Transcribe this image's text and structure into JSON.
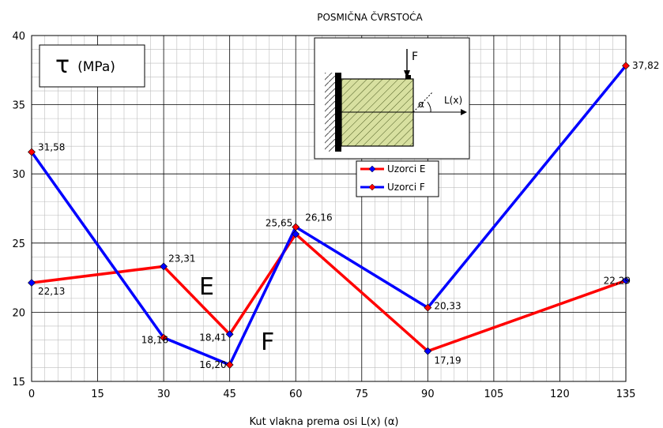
{
  "chart_data": {
    "type": "line",
    "title": "POSMIČNA ČVRSTOĆA",
    "xlabel": "Kut vlakna prema osi L(x) (α)",
    "ylabel": "",
    "x_ticks": [
      0,
      15,
      30,
      45,
      60,
      75,
      90,
      105,
      120,
      135
    ],
    "y_ticks": [
      15,
      20,
      25,
      30,
      35,
      40
    ],
    "xlim": [
      0,
      135
    ],
    "ylim": [
      15,
      40
    ],
    "grid": true,
    "legend_position": "upper-middle-right",
    "unit_box": {
      "symbol": "τ",
      "text": "(MPa)"
    },
    "series": [
      {
        "name": "Uzorci E",
        "color": "#ff0000",
        "marker_color": "#0000ff",
        "x": [
          0,
          30,
          45,
          60,
          90,
          135
        ],
        "values": [
          22.13,
          23.31,
          18.41,
          25.65,
          17.19,
          22.29
        ],
        "labels": [
          "22,13",
          "23,31",
          "18,41",
          "25,65",
          "17,19",
          "22,29"
        ],
        "curve_label": "E"
      },
      {
        "name": "Uzorci F",
        "color": "#0000ff",
        "marker_color": "#ff0000",
        "x": [
          0,
          30,
          45,
          60,
          90,
          135
        ],
        "values": [
          31.58,
          18.16,
          16.2,
          26.16,
          20.33,
          37.82
        ],
        "labels": [
          "31,58",
          "18,16",
          "16,20",
          "26,16",
          "20,33",
          "37,82"
        ],
        "curve_label": "F"
      }
    ],
    "inset": {
      "force_label": "F",
      "axis_label": "L(x)",
      "angle_label": "α"
    }
  }
}
